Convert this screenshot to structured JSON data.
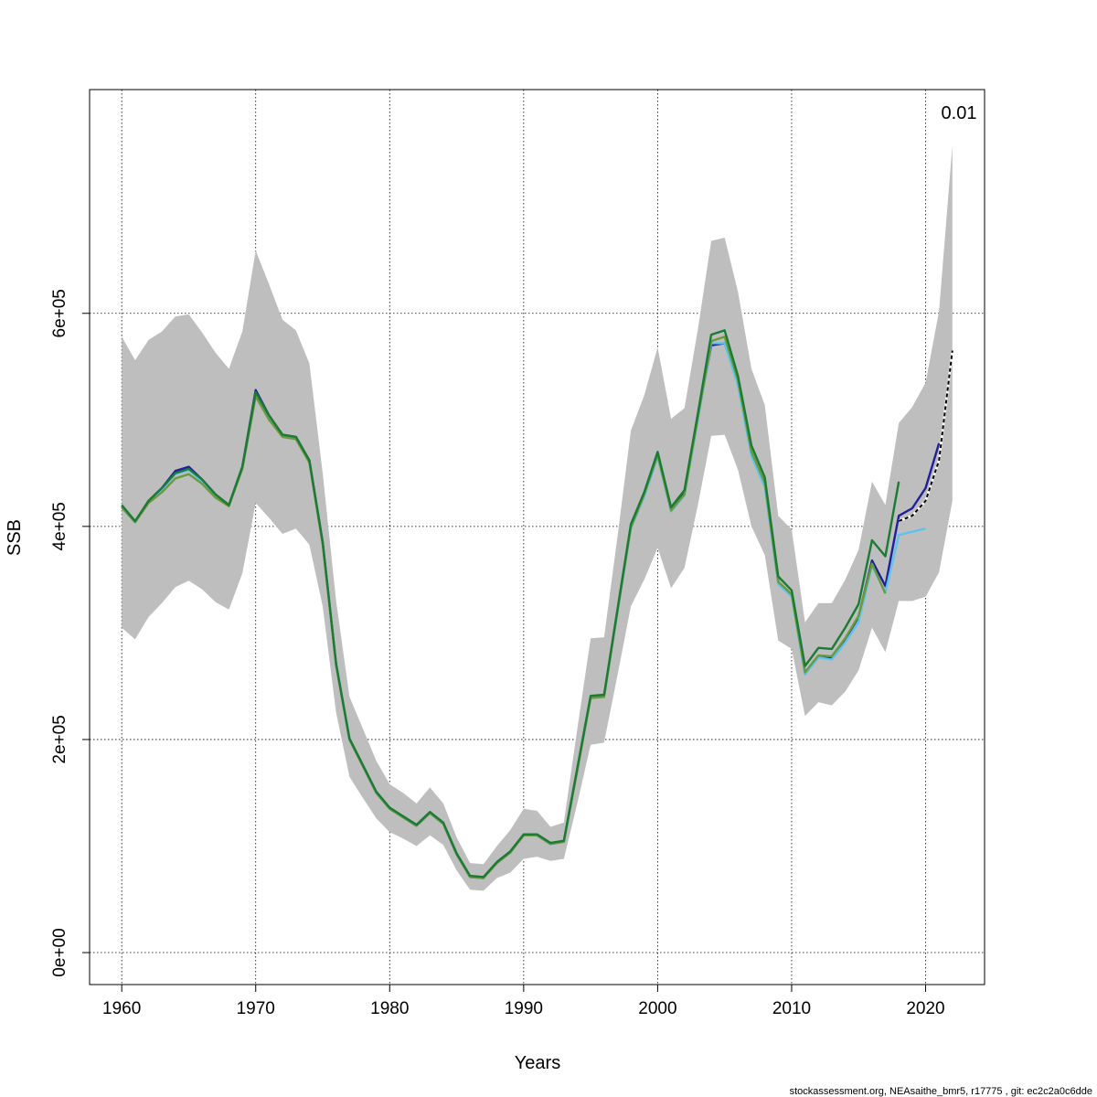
{
  "footer": "stockassessment.org, NEAsaithe_bmr5, r17775 , git: ec2c2a0c6dde",
  "chart_data": {
    "type": "line",
    "xlabel": "Years",
    "ylabel": "SSB",
    "xlim": [
      1957.6,
      2024.4
    ],
    "ylim": [
      -30000,
      810000
    ],
    "xticks": [
      1960,
      1970,
      1980,
      1990,
      2000,
      2010,
      2020
    ],
    "yticks": [
      0,
      200000,
      400000,
      600000
    ],
    "ytick_labels": [
      "0e+00",
      "2e+05",
      "4e+05",
      "6e+05"
    ],
    "grid": true,
    "annotation": {
      "text": "0.01",
      "x": 2022,
      "y": 765000
    },
    "band": {
      "color": "#bebebe",
      "x": [
        1960,
        1961,
        1962,
        1963,
        1964,
        1965,
        1966,
        1967,
        1968,
        1969,
        1970,
        1971,
        1972,
        1973,
        1974,
        1975,
        1976,
        1977,
        1978,
        1979,
        1980,
        1981,
        1982,
        1983,
        1984,
        1985,
        1986,
        1987,
        1988,
        1989,
        1990,
        1991,
        1992,
        1993,
        1994,
        1995,
        1996,
        1997,
        1998,
        1999,
        2000,
        2001,
        2002,
        2003,
        2004,
        2005,
        2006,
        2007,
        2008,
        2009,
        2010,
        2011,
        2012,
        2013,
        2014,
        2015,
        2016,
        2017,
        2018,
        2019,
        2020,
        2021,
        2022
      ],
      "upper": [
        578000,
        556000,
        575000,
        583000,
        597000,
        599000,
        582000,
        563000,
        548000,
        583000,
        659000,
        627000,
        594000,
        584000,
        553000,
        450000,
        330000,
        240000,
        210000,
        180000,
        158000,
        150000,
        140000,
        155000,
        140000,
        108000,
        84000,
        83000,
        100000,
        115000,
        135000,
        133000,
        118000,
        122000,
        210000,
        295000,
        296000,
        390000,
        490000,
        523000,
        568000,
        501000,
        511000,
        585000,
        668000,
        671000,
        620000,
        548000,
        514000,
        410000,
        397000,
        310000,
        328000,
        328000,
        350000,
        378000,
        442000,
        420000,
        497000,
        512000,
        535000,
        602000,
        758000
      ],
      "lower": [
        305000,
        294000,
        315000,
        328000,
        343000,
        349000,
        341000,
        329000,
        322000,
        356000,
        422000,
        408000,
        393000,
        398000,
        383000,
        325000,
        225000,
        165000,
        145000,
        126000,
        113000,
        107000,
        100000,
        110000,
        101000,
        77000,
        59000,
        58000,
        70000,
        75000,
        88000,
        90000,
        86000,
        88000,
        140000,
        195000,
        197000,
        260000,
        325000,
        350000,
        380000,
        342000,
        361000,
        420000,
        485000,
        486000,
        453000,
        400000,
        373000,
        293000,
        285000,
        222000,
        235000,
        232000,
        245000,
        265000,
        305000,
        282000,
        330000,
        330000,
        334000,
        357000,
        424000
      ]
    },
    "series": [
      {
        "color": "#1f1f9a",
        "x": [
          1960,
          1961,
          1962,
          1963,
          1964,
          1965,
          1966,
          1967,
          1968,
          1969,
          1970,
          1971,
          1972,
          1973,
          1974,
          1975,
          1976,
          1977,
          1978,
          1979,
          1980,
          1981,
          1982,
          1983,
          1984,
          1985,
          1986,
          1987,
          1988,
          1989,
          1990,
          1991,
          1992,
          1993,
          1994,
          1995,
          1996,
          1997,
          1998,
          1999,
          2000,
          2001,
          2002,
          2003,
          2004,
          2005,
          2006,
          2007,
          2008,
          2009,
          2010,
          2011,
          2012,
          2013,
          2014,
          2015,
          2016,
          2017,
          2018,
          2019,
          2020,
          2021
        ],
        "values": [
          418000,
          404000,
          424000,
          436000,
          452000,
          456000,
          444000,
          430000,
          420000,
          456000,
          528000,
          504000,
          486000,
          484000,
          462000,
          385000,
          270000,
          200000,
          175000,
          150000,
          135000,
          127000,
          119000,
          131000,
          121000,
          92000,
          71000,
          70000,
          84000,
          94000,
          110000,
          110000,
          102000,
          104000,
          172000,
          240000,
          241000,
          320000,
          400000,
          430000,
          467000,
          416000,
          431000,
          503000,
          570000,
          572000,
          535000,
          470000,
          440000,
          348000,
          336000,
          263000,
          278000,
          276000,
          294000,
          315000,
          368000,
          344000,
          410000,
          417000,
          436000,
          478000
        ]
      },
      {
        "color": "#5cc5ee",
        "x": [
          1960,
          1961,
          1962,
          1963,
          1964,
          1965,
          1966,
          1967,
          1968,
          1969,
          1970,
          1971,
          1972,
          1973,
          1974,
          1975,
          1976,
          1977,
          1978,
          1979,
          1980,
          1981,
          1982,
          1983,
          1984,
          1985,
          1986,
          1987,
          1988,
          1989,
          1990,
          1991,
          1992,
          1993,
          1994,
          1995,
          1996,
          1997,
          1998,
          1999,
          2000,
          2001,
          2002,
          2003,
          2004,
          2005,
          2006,
          2007,
          2008,
          2009,
          2010,
          2011,
          2012,
          2013,
          2014,
          2015,
          2016,
          2017,
          2018,
          2019,
          2020
        ],
        "values": [
          418000,
          404000,
          423000,
          435000,
          449000,
          453000,
          442000,
          428000,
          420000,
          455000,
          525000,
          502000,
          485000,
          483000,
          461000,
          384000,
          270000,
          200000,
          175000,
          150000,
          135000,
          127000,
          119000,
          131000,
          121000,
          92000,
          71000,
          70000,
          84000,
          94000,
          110000,
          110000,
          102000,
          104000,
          171000,
          239000,
          240000,
          319000,
          398000,
          428000,
          465000,
          414000,
          429000,
          500000,
          572000,
          572000,
          532000,
          466000,
          437000,
          346000,
          334000,
          261000,
          277000,
          275000,
          291000,
          310000,
          363000,
          338000,
          392000,
          395000,
          398000
        ]
      },
      {
        "color": "#6a9a3c",
        "x": [
          1960,
          1961,
          1962,
          1963,
          1964,
          1965,
          1966,
          1967,
          1968,
          1969,
          1970,
          1971,
          1972,
          1973,
          1974,
          1975,
          1976,
          1977,
          1978,
          1979,
          1980,
          1981,
          1982,
          1983,
          1984,
          1985,
          1986,
          1987,
          1988,
          1989,
          1990,
          1991,
          1992,
          1993,
          1994,
          1995,
          1996,
          1997,
          1998,
          1999,
          2000,
          2001,
          2002,
          2003,
          2004,
          2005,
          2006,
          2007,
          2008,
          2009,
          2010,
          2011,
          2012,
          2013,
          2014,
          2015,
          2016,
          2017
        ],
        "values": [
          418000,
          404000,
          422000,
          432000,
          445000,
          449000,
          440000,
          427000,
          419000,
          454000,
          522000,
          500000,
          484000,
          482000,
          460000,
          383000,
          270000,
          200000,
          175000,
          150000,
          135000,
          127000,
          119000,
          131000,
          121000,
          92000,
          71000,
          70000,
          84000,
          94000,
          110000,
          110000,
          102000,
          104000,
          171000,
          239000,
          240000,
          320000,
          399000,
          430000,
          467000,
          415000,
          430000,
          502000,
          574000,
          578000,
          537000,
          470000,
          441000,
          348000,
          336000,
          263000,
          279000,
          278000,
          295000,
          316000,
          365000,
          337000
        ]
      },
      {
        "color": "#1b7a33",
        "x": [
          1960,
          1961,
          1962,
          1963,
          1964,
          1965,
          1966,
          1967,
          1968,
          1969,
          1970,
          1971,
          1972,
          1973,
          1974,
          1975,
          1976,
          1977,
          1978,
          1979,
          1980,
          1981,
          1982,
          1983,
          1984,
          1985,
          1986,
          1987,
          1988,
          1989,
          1990,
          1991,
          1992,
          1993,
          1994,
          1995,
          1996,
          1997,
          1998,
          1999,
          2000,
          2001,
          2002,
          2003,
          2004,
          2005,
          2006,
          2007,
          2008,
          2009,
          2010,
          2011,
          2012,
          2013,
          2014,
          2015,
          2016,
          2017,
          2018
        ],
        "values": [
          420000,
          405000,
          424000,
          436000,
          450000,
          454000,
          444000,
          430000,
          420000,
          456000,
          526000,
          504000,
          486000,
          484000,
          462000,
          385000,
          271000,
          201000,
          176000,
          151000,
          136000,
          128000,
          120000,
          132000,
          122000,
          93000,
          72000,
          71000,
          85000,
          95000,
          111000,
          111000,
          103000,
          105000,
          173000,
          241000,
          242000,
          322000,
          402000,
          432000,
          470000,
          418000,
          434000,
          506000,
          580000,
          584000,
          541000,
          476000,
          446000,
          353000,
          340000,
          269000,
          286000,
          285000,
          305000,
          327000,
          387000,
          372000,
          442000
        ]
      },
      {
        "color": "#000000",
        "dashed": true,
        "x": [
          2018,
          2019,
          2020,
          2021,
          2022
        ],
        "values": [
          405000,
          410000,
          424000,
          462000,
          565000
        ]
      }
    ]
  }
}
